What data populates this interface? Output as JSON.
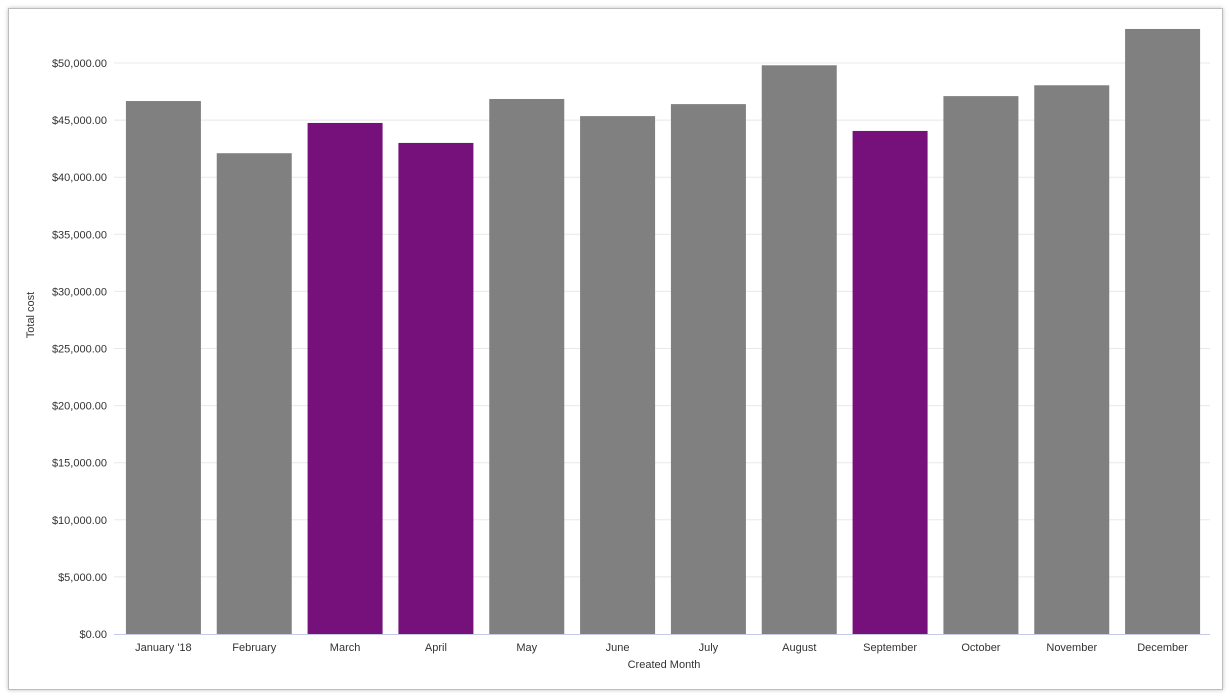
{
  "chart_data": {
    "type": "bar",
    "title": "",
    "xlabel": "Created Month",
    "ylabel": "Total cost",
    "categories": [
      "January '18",
      "February",
      "March",
      "April",
      "May",
      "June",
      "July",
      "August",
      "September",
      "October",
      "November",
      "December"
    ],
    "values": [
      46670,
      42100,
      44750,
      43000,
      46850,
      45350,
      46400,
      49800,
      44050,
      47100,
      48050,
      52980
    ],
    "highlighted": [
      false,
      false,
      true,
      true,
      false,
      false,
      false,
      false,
      true,
      false,
      false,
      false
    ],
    "ylim": [
      0,
      55000
    ],
    "yticks": [
      0,
      5000,
      10000,
      15000,
      20000,
      25000,
      30000,
      35000,
      40000,
      45000,
      50000
    ],
    "ytick_labels": [
      "$0.00",
      "$5,000.00",
      "$10,000.00",
      "$15,000.00",
      "$20,000.00",
      "$25,000.00",
      "$30,000.00",
      "$35,000.00",
      "$40,000.00",
      "$45,000.00",
      "$50,000.00"
    ],
    "grid": true,
    "legend": "none",
    "colors": {
      "default": "#808080",
      "highlight": "#76117c",
      "grid": "#e8e8e8",
      "axis": "#c5cae9"
    }
  }
}
